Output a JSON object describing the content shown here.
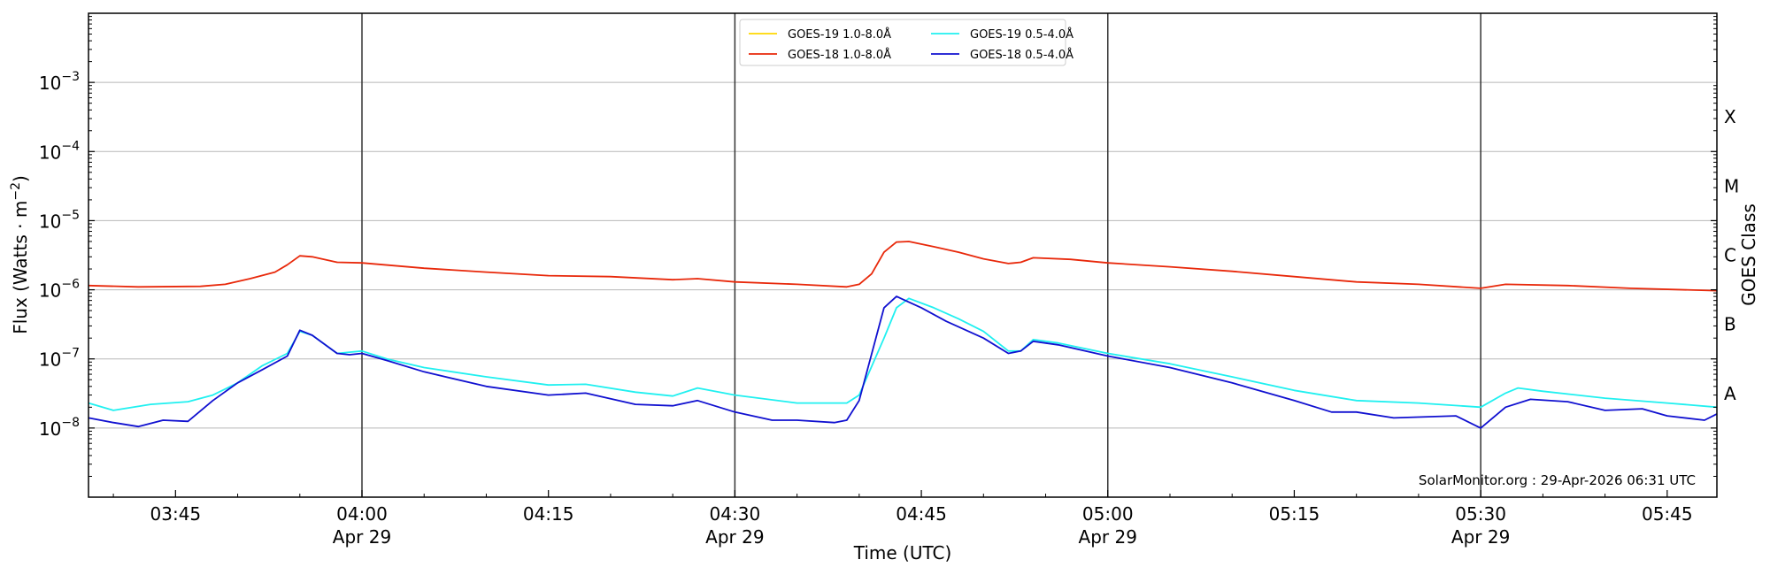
{
  "chart_data": {
    "type": "line",
    "y_scale": "log",
    "ylim": [
      1e-09,
      0.01
    ],
    "xlim": [
      "03:38",
      "05:49"
    ],
    "x_tick_labels": [
      "03:45",
      "04:00",
      "04:15",
      "04:30",
      "04:45",
      "05:00",
      "05:15",
      "05:30",
      "05:45"
    ],
    "x_date_labels": {
      "04:00": "Apr 29",
      "04:30": "Apr 29",
      "05:00": "Apr 29",
      "05:30": "Apr 29"
    },
    "y_tick_labels": [
      {
        "value": 1e-08,
        "label": "10",
        "exp": "−8"
      },
      {
        "value": 1e-07,
        "label": "10",
        "exp": "−7"
      },
      {
        "value": 1e-06,
        "label": "10",
        "exp": "−6"
      },
      {
        "value": 1e-05,
        "label": "10",
        "exp": "−5"
      },
      {
        "value": 0.0001,
        "label": "10",
        "exp": "−4"
      },
      {
        "value": 0.001,
        "label": "10",
        "exp": "−3"
      }
    ],
    "ylabel": "Flux (Watts · m",
    "ylabel_exp": "−2",
    "ylabel_close": ")",
    "xlabel": "Time (UTC)",
    "y2label": "GOES Class",
    "goes_classes": [
      {
        "label": "A",
        "value": 1e-08
      },
      {
        "label": "B",
        "value": 1e-07
      },
      {
        "label": "C",
        "value": 1e-06
      },
      {
        "label": "M",
        "value": 1e-05
      },
      {
        "label": "X",
        "value": 0.0001
      }
    ],
    "vertical_lines": [
      "04:00",
      "04:30",
      "05:00",
      "05:30"
    ],
    "grid": "horizontal",
    "legend_position": "top-center",
    "credit": "SolarMonitor.org : 29-Apr-2026 06:31 UTC",
    "series": [
      {
        "name": "GOES-19 1.0-8.0Å",
        "color": "#ffd700",
        "points": []
      },
      {
        "name": "GOES-18 1.0-8.0Å",
        "color": "#e8280a",
        "points": [
          [
            "03:38",
            1.15e-06
          ],
          [
            "03:42",
            1.1e-06
          ],
          [
            "03:47",
            1.12e-06
          ],
          [
            "03:49",
            1.2e-06
          ],
          [
            "03:51",
            1.45e-06
          ],
          [
            "03:53",
            1.8e-06
          ],
          [
            "03:54",
            2.3e-06
          ],
          [
            "03:55",
            3.1e-06
          ],
          [
            "03:56",
            3e-06
          ],
          [
            "03:58",
            2.5e-06
          ],
          [
            "04:00",
            2.45e-06
          ],
          [
            "04:05",
            2.05e-06
          ],
          [
            "04:10",
            1.8e-06
          ],
          [
            "04:15",
            1.6e-06
          ],
          [
            "04:20",
            1.55e-06
          ],
          [
            "04:25",
            1.4e-06
          ],
          [
            "04:27",
            1.45e-06
          ],
          [
            "04:30",
            1.3e-06
          ],
          [
            "04:35",
            1.2e-06
          ],
          [
            "04:39",
            1.1e-06
          ],
          [
            "04:40",
            1.2e-06
          ],
          [
            "04:41",
            1.7e-06
          ],
          [
            "04:42",
            3.5e-06
          ],
          [
            "04:43",
            4.9e-06
          ],
          [
            "04:44",
            5e-06
          ],
          [
            "04:46",
            4.2e-06
          ],
          [
            "04:48",
            3.5e-06
          ],
          [
            "04:50",
            2.8e-06
          ],
          [
            "04:52",
            2.4e-06
          ],
          [
            "04:53",
            2.5e-06
          ],
          [
            "04:54",
            2.9e-06
          ],
          [
            "04:57",
            2.75e-06
          ],
          [
            "05:00",
            2.45e-06
          ],
          [
            "05:05",
            2.15e-06
          ],
          [
            "05:10",
            1.85e-06
          ],
          [
            "05:15",
            1.55e-06
          ],
          [
            "05:20",
            1.3e-06
          ],
          [
            "05:25",
            1.2e-06
          ],
          [
            "05:30",
            1.05e-06
          ],
          [
            "05:32",
            1.2e-06
          ],
          [
            "05:37",
            1.15e-06
          ],
          [
            "05:42",
            1.05e-06
          ],
          [
            "05:49",
            9.7e-07
          ]
        ]
      },
      {
        "name": "GOES-19 0.5-4.0Å",
        "color": "#20f0f0",
        "points": [
          [
            "03:38",
            2.3e-08
          ],
          [
            "03:40",
            1.8e-08
          ],
          [
            "03:43",
            2.2e-08
          ],
          [
            "03:46",
            2.4e-08
          ],
          [
            "03:48",
            3e-08
          ],
          [
            "03:50",
            4.5e-08
          ],
          [
            "03:52",
            8e-08
          ],
          [
            "03:54",
            1.2e-07
          ],
          [
            "03:55",
            2.5e-07
          ],
          [
            "03:56",
            2.2e-07
          ],
          [
            "03:58",
            1.2e-07
          ],
          [
            "03:59",
            1.25e-07
          ],
          [
            "04:00",
            1.3e-07
          ],
          [
            "04:02",
            1e-07
          ],
          [
            "04:05",
            7.5e-08
          ],
          [
            "04:10",
            5.5e-08
          ],
          [
            "04:15",
            4.2e-08
          ],
          [
            "04:18",
            4.3e-08
          ],
          [
            "04:22",
            3.3e-08
          ],
          [
            "04:25",
            2.9e-08
          ],
          [
            "04:27",
            3.8e-08
          ],
          [
            "04:30",
            3e-08
          ],
          [
            "04:35",
            2.3e-08
          ],
          [
            "04:39",
            2.3e-08
          ],
          [
            "04:40",
            3e-08
          ],
          [
            "04:42",
            2e-07
          ],
          [
            "04:43",
            5.5e-07
          ],
          [
            "04:44",
            7.5e-07
          ],
          [
            "04:46",
            5.5e-07
          ],
          [
            "04:48",
            3.8e-07
          ],
          [
            "04:50",
            2.5e-07
          ],
          [
            "04:52",
            1.3e-07
          ],
          [
            "04:53",
            1.3e-07
          ],
          [
            "04:54",
            1.9e-07
          ],
          [
            "04:56",
            1.7e-07
          ],
          [
            "05:00",
            1.2e-07
          ],
          [
            "05:05",
            8.5e-08
          ],
          [
            "05:10",
            5.5e-08
          ],
          [
            "05:15",
            3.5e-08
          ],
          [
            "05:20",
            2.5e-08
          ],
          [
            "05:25",
            2.3e-08
          ],
          [
            "05:30",
            2e-08
          ],
          [
            "05:32",
            3.2e-08
          ],
          [
            "05:33",
            3.8e-08
          ],
          [
            "05:35",
            3.4e-08
          ],
          [
            "05:40",
            2.7e-08
          ],
          [
            "05:45",
            2.3e-08
          ],
          [
            "05:49",
            2e-08
          ]
        ]
      },
      {
        "name": "GOES-18 0.5-4.0Å",
        "color": "#1010d0",
        "points": [
          [
            "03:38",
            1.4e-08
          ],
          [
            "03:40",
            1.2e-08
          ],
          [
            "03:42",
            1.05e-08
          ],
          [
            "03:44",
            1.3e-08
          ],
          [
            "03:46",
            1.25e-08
          ],
          [
            "03:48",
            2.5e-08
          ],
          [
            "03:50",
            4.5e-08
          ],
          [
            "03:52",
            7e-08
          ],
          [
            "03:54",
            1.1e-07
          ],
          [
            "03:55",
            2.6e-07
          ],
          [
            "03:56",
            2.2e-07
          ],
          [
            "03:58",
            1.2e-07
          ],
          [
            "03:59",
            1.15e-07
          ],
          [
            "04:00",
            1.2e-07
          ],
          [
            "04:02",
            9.5e-08
          ],
          [
            "04:05",
            6.5e-08
          ],
          [
            "04:10",
            4e-08
          ],
          [
            "04:15",
            3e-08
          ],
          [
            "04:18",
            3.2e-08
          ],
          [
            "04:22",
            2.2e-08
          ],
          [
            "04:25",
            2.1e-08
          ],
          [
            "04:27",
            2.5e-08
          ],
          [
            "04:30",
            1.7e-08
          ],
          [
            "04:33",
            1.3e-08
          ],
          [
            "04:35",
            1.3e-08
          ],
          [
            "04:38",
            1.2e-08
          ],
          [
            "04:39",
            1.3e-08
          ],
          [
            "04:40",
            2.5e-08
          ],
          [
            "04:42",
            5.5e-07
          ],
          [
            "04:43",
            8e-07
          ],
          [
            "04:45",
            5.5e-07
          ],
          [
            "04:47",
            3.5e-07
          ],
          [
            "04:50",
            2e-07
          ],
          [
            "04:52",
            1.2e-07
          ],
          [
            "04:53",
            1.3e-07
          ],
          [
            "04:54",
            1.8e-07
          ],
          [
            "04:56",
            1.6e-07
          ],
          [
            "05:00",
            1.1e-07
          ],
          [
            "05:05",
            7.5e-08
          ],
          [
            "05:10",
            4.5e-08
          ],
          [
            "05:15",
            2.5e-08
          ],
          [
            "05:18",
            1.7e-08
          ],
          [
            "05:20",
            1.7e-08
          ],
          [
            "05:23",
            1.4e-08
          ],
          [
            "05:28",
            1.5e-08
          ],
          [
            "05:30",
            1e-08
          ],
          [
            "05:32",
            2e-08
          ],
          [
            "05:34",
            2.6e-08
          ],
          [
            "05:37",
            2.4e-08
          ],
          [
            "05:40",
            1.8e-08
          ],
          [
            "05:43",
            1.9e-08
          ],
          [
            "05:45",
            1.5e-08
          ],
          [
            "05:48",
            1.3e-08
          ],
          [
            "05:49",
            1.6e-08
          ]
        ]
      }
    ]
  }
}
